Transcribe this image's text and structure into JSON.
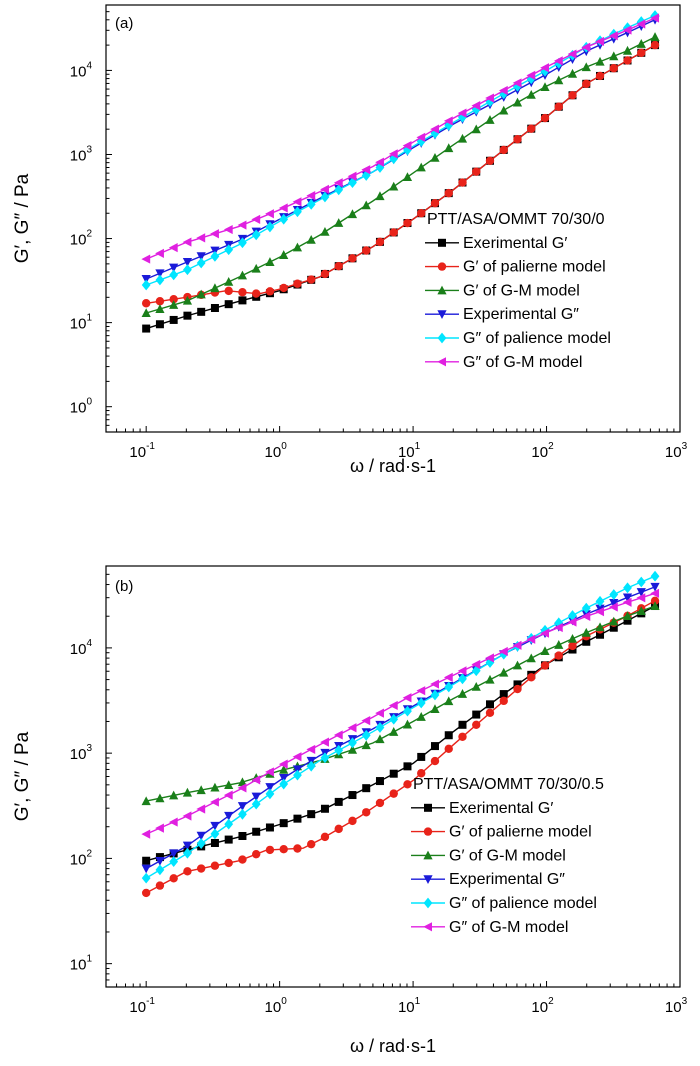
{
  "figure": {
    "title": ""
  },
  "chart_data": [
    {
      "type": "line",
      "panel_label": "(a)",
      "xlabel": "ω / rad·s-1",
      "ylabel": "G′, G″ / Pa",
      "x_scale": "log",
      "y_scale": "log",
      "xlim": [
        0.05,
        1000
      ],
      "ylim": [
        0.5,
        60000
      ],
      "x_ticks": [
        0.1,
        1,
        10,
        100,
        1000
      ],
      "x_tick_labels": [
        {
          "base": "10",
          "exp": "-1"
        },
        {
          "base": "10",
          "exp": "0"
        },
        {
          "base": "10",
          "exp": "1"
        },
        {
          "base": "10",
          "exp": "2"
        },
        {
          "base": "10",
          "exp": "3"
        }
      ],
      "y_ticks": [
        1,
        10,
        100,
        1000,
        10000
      ],
      "y_tick_labels": [
        {
          "base": "10",
          "exp": "0"
        },
        {
          "base": "10",
          "exp": "1"
        },
        {
          "base": "10",
          "exp": "2"
        },
        {
          "base": "10",
          "exp": "3"
        },
        {
          "base": "10",
          "exp": "4"
        }
      ],
      "grid": false,
      "legend_title": "PTT/ASA/OMMT 70/30/0",
      "legend_position": "right",
      "series": [
        {
          "name": "Exerimental G′",
          "color": "#000000",
          "marker": "square",
          "points": [
            [
              0.1,
              8.5
            ],
            [
              0.2,
              12
            ],
            [
              0.5,
              18
            ],
            [
              1,
              24
            ],
            [
              2,
              35
            ],
            [
              5,
              80
            ],
            [
              10,
              170
            ],
            [
              20,
              380
            ],
            [
              50,
              1200
            ],
            [
              100,
              2800
            ],
            [
              200,
              7000
            ],
            [
              400,
              13000
            ],
            [
              650,
              20000
            ]
          ]
        },
        {
          "name": "G′ of palierne model",
          "color": "#e8231a",
          "marker": "circle",
          "points": [
            [
              0.1,
              17
            ],
            [
              0.2,
              20
            ],
            [
              0.4,
              24
            ],
            [
              0.7,
              22
            ],
            [
              1,
              25
            ],
            [
              2,
              35
            ],
            [
              5,
              80
            ],
            [
              10,
              170
            ],
            [
              20,
              380
            ],
            [
              50,
              1200
            ],
            [
              100,
              2800
            ],
            [
              200,
              7000
            ],
            [
              400,
              13000
            ],
            [
              650,
              20000
            ]
          ]
        },
        {
          "name": "G′ of G-M model",
          "color": "#1a7f1a",
          "marker": "triangle-up",
          "points": [
            [
              0.1,
              13
            ],
            [
              0.2,
              18
            ],
            [
              0.5,
              35
            ],
            [
              1,
              60
            ],
            [
              2,
              110
            ],
            [
              5,
              280
            ],
            [
              10,
              600
            ],
            [
              20,
              1300
            ],
            [
              50,
              3500
            ],
            [
              100,
              6500
            ],
            [
              200,
              11000
            ],
            [
              400,
              17000
            ],
            [
              650,
              25000
            ]
          ]
        },
        {
          "name": "Experimental G″",
          "color": "#1a1ad9",
          "marker": "triangle-down",
          "points": [
            [
              0.1,
              33
            ],
            [
              0.2,
              52
            ],
            [
              0.5,
              95
            ],
            [
              1,
              170
            ],
            [
              2,
              300
            ],
            [
              5,
              620
            ],
            [
              10,
              1200
            ],
            [
              20,
              2300
            ],
            [
              50,
              5000
            ],
            [
              100,
              9000
            ],
            [
              200,
              17000
            ],
            [
              400,
              28000
            ],
            [
              650,
              40000
            ]
          ]
        },
        {
          "name": "G″ of palience model",
          "color": "#00e5ff",
          "marker": "diamond",
          "points": [
            [
              0.1,
              28
            ],
            [
              0.2,
              42
            ],
            [
              0.5,
              85
            ],
            [
              1,
              160
            ],
            [
              2,
              290
            ],
            [
              5,
              620
            ],
            [
              10,
              1250
            ],
            [
              20,
              2400
            ],
            [
              50,
              5500
            ],
            [
              100,
              10000
            ],
            [
              200,
              19000
            ],
            [
              400,
              32000
            ],
            [
              650,
              45000
            ]
          ]
        },
        {
          "name": "G″ of G-M model",
          "color": "#e020e0",
          "marker": "triangle-left",
          "points": [
            [
              0.1,
              57
            ],
            [
              0.2,
              90
            ],
            [
              0.5,
              140
            ],
            [
              1,
              220
            ],
            [
              2,
              360
            ],
            [
              5,
              720
            ],
            [
              10,
              1400
            ],
            [
              20,
              2700
            ],
            [
              50,
              6000
            ],
            [
              100,
              11000
            ],
            [
              200,
              19000
            ],
            [
              400,
              30000
            ],
            [
              650,
              42000
            ]
          ]
        }
      ]
    },
    {
      "type": "line",
      "panel_label": "(b)",
      "xlabel": "ω / rad·s-1",
      "ylabel": "G′, G″ / Pa",
      "x_scale": "log",
      "y_scale": "log",
      "xlim": [
        0.05,
        1000
      ],
      "ylim": [
        6,
        60000
      ],
      "x_ticks": [
        0.1,
        1,
        10,
        100,
        1000
      ],
      "x_tick_labels": [
        {
          "base": "10",
          "exp": "-1"
        },
        {
          "base": "10",
          "exp": "0"
        },
        {
          "base": "10",
          "exp": "1"
        },
        {
          "base": "10",
          "exp": "2"
        },
        {
          "base": "10",
          "exp": "3"
        }
      ],
      "y_ticks": [
        10,
        100,
        1000,
        10000
      ],
      "y_tick_labels": [
        {
          "base": "10",
          "exp": "1"
        },
        {
          "base": "10",
          "exp": "2"
        },
        {
          "base": "10",
          "exp": "3"
        },
        {
          "base": "10",
          "exp": "4"
        }
      ],
      "grid": false,
      "legend_title": "PTT/ASA/OMMT 70/30/0.5",
      "legend_position": "right",
      "series": [
        {
          "name": "Exerimental G′",
          "color": "#000000",
          "marker": "square",
          "points": [
            [
              0.1,
              95
            ],
            [
              0.2,
              120
            ],
            [
              0.5,
              160
            ],
            [
              1,
              210
            ],
            [
              2,
              280
            ],
            [
              5,
              500
            ],
            [
              10,
              800
            ],
            [
              20,
              1600
            ],
            [
              50,
              3800
            ],
            [
              100,
              7000
            ],
            [
              200,
              11500
            ],
            [
              400,
              18000
            ],
            [
              650,
              25000
            ]
          ]
        },
        {
          "name": "G′ of palierne model",
          "color": "#e8231a",
          "marker": "circle",
          "points": [
            [
              0.1,
              47
            ],
            [
              0.2,
              75
            ],
            [
              0.5,
              95
            ],
            [
              0.8,
              120
            ],
            [
              1.5,
              125
            ],
            [
              2,
              150
            ],
            [
              4,
              250
            ],
            [
              10,
              550
            ],
            [
              20,
              1200
            ],
            [
              50,
              3300
            ],
            [
              100,
              7000
            ],
            [
              200,
              13000
            ],
            [
              400,
              20000
            ],
            [
              650,
              28000
            ]
          ]
        },
        {
          "name": "G′ of G-M model",
          "color": "#1a7f1a",
          "marker": "triangle-up",
          "points": [
            [
              0.1,
              350
            ],
            [
              0.2,
              420
            ],
            [
              0.5,
              520
            ],
            [
              1,
              680
            ],
            [
              2,
              850
            ],
            [
              5,
              1250
            ],
            [
              10,
              2000
            ],
            [
              20,
              3300
            ],
            [
              50,
              6000
            ],
            [
              100,
              9500
            ],
            [
              200,
              14000
            ],
            [
              400,
              20000
            ],
            [
              650,
              25000
            ]
          ]
        },
        {
          "name": "Experimental G″",
          "color": "#1a1ad9",
          "marker": "triangle-down",
          "points": [
            [
              0.1,
              80
            ],
            [
              0.2,
              130
            ],
            [
              0.5,
              300
            ],
            [
              1,
              550
            ],
            [
              2,
              950
            ],
            [
              5,
              1700
            ],
            [
              10,
              2800
            ],
            [
              20,
              4600
            ],
            [
              50,
              9000
            ],
            [
              100,
              14000
            ],
            [
              200,
              21000
            ],
            [
              400,
              30000
            ],
            [
              650,
              38000
            ]
          ]
        },
        {
          "name": "G″ of palience model",
          "color": "#00e5ff",
          "marker": "diamond",
          "points": [
            [
              0.1,
              65
            ],
            [
              0.2,
              110
            ],
            [
              0.5,
              250
            ],
            [
              1,
              480
            ],
            [
              2,
              850
            ],
            [
              5,
              1600
            ],
            [
              10,
              2700
            ],
            [
              20,
              4500
            ],
            [
              50,
              9000
            ],
            [
              100,
              15000
            ],
            [
              200,
              24000
            ],
            [
              400,
              37000
            ],
            [
              650,
              48000
            ]
          ]
        },
        {
          "name": "G″ of G-M model",
          "color": "#e020e0",
          "marker": "triangle-left",
          "points": [
            [
              0.1,
              170
            ],
            [
              0.2,
              250
            ],
            [
              0.5,
              450
            ],
            [
              1,
              750
            ],
            [
              2,
              1200
            ],
            [
              5,
              2200
            ],
            [
              10,
              3600
            ],
            [
              20,
              5500
            ],
            [
              50,
              9500
            ],
            [
              100,
              14000
            ],
            [
              200,
              20000
            ],
            [
              400,
              27000
            ],
            [
              650,
              33000
            ]
          ]
        }
      ]
    }
  ]
}
